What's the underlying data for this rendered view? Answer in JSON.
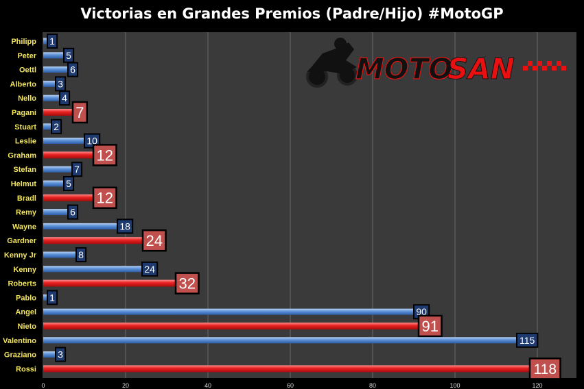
{
  "colors": {
    "background": "#000000",
    "plot_area": "#3a3a3a",
    "father_bar": "#e82020",
    "son_bar": "#5b8fd6",
    "father_label_bg": "#c0504d",
    "son_label_bg": "#1f3a6e",
    "category_label": "#f2e55c"
  },
  "logo": {
    "text_left": "MOTO",
    "text_right": "SAN",
    "icon": "motorcycle-rider-icon"
  },
  "chart_data": {
    "type": "bar",
    "orientation": "horizontal",
    "title": "Victorias en Grandes Premios (Padre/Hijo) #MotoGP",
    "xlabel": "",
    "ylabel": "",
    "xlim": [
      0,
      130
    ],
    "xticks": [
      0,
      20,
      40,
      60,
      80,
      100,
      120
    ],
    "grid": true,
    "categories": [
      "Philipp",
      "Peter",
      "Oettl",
      "Alberto",
      "Nello",
      "Pagani",
      "Stuart",
      "Leslie",
      "Graham",
      "Stefan",
      "Helmut",
      "Bradl",
      "Remy",
      "Wayne",
      "Gardner",
      "Kenny Jr",
      "Kenny",
      "Roberts",
      "Pablo",
      "Angel",
      "Nieto",
      "Valentino",
      "Graziano",
      "Rossi"
    ],
    "values": [
      1,
      5,
      6,
      3,
      4,
      7,
      2,
      10,
      12,
      7,
      5,
      12,
      6,
      18,
      24,
      8,
      24,
      32,
      1,
      90,
      91,
      115,
      3,
      118
    ],
    "roles": [
      "son",
      "son",
      "son",
      "son",
      "son",
      "father",
      "son",
      "son",
      "father",
      "son",
      "son",
      "father",
      "son",
      "son",
      "father",
      "son",
      "son",
      "father",
      "son",
      "son",
      "father",
      "son",
      "son",
      "father"
    ]
  }
}
